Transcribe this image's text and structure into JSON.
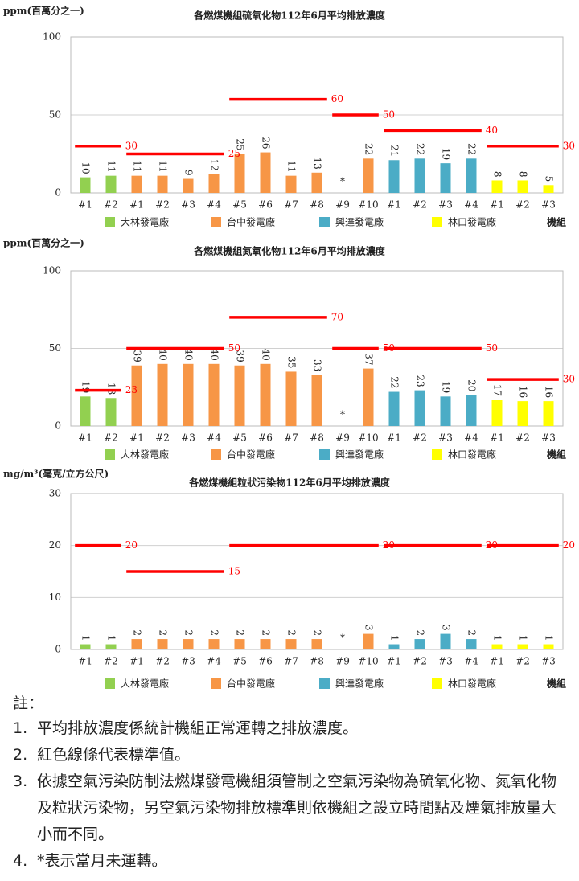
{
  "chart_data": [
    {
      "type": "bar",
      "title": "各燃煤機組硫氧化物112年6月平均排放濃度",
      "y_label": "ppm(百萬分之一)",
      "x_label": "機組",
      "categories": [
        "#1",
        "#2",
        "#1",
        "#2",
        "#3",
        "#4",
        "#5",
        "#6",
        "#7",
        "#8",
        "#9",
        "#10",
        "#1",
        "#2",
        "#3",
        "#4",
        "#1",
        "#2",
        "#3"
      ],
      "ylim": [
        0,
        100
      ],
      "yticks": [
        0,
        50,
        100
      ],
      "grid": true,
      "limit_color": "#ff0000",
      "series": [
        {
          "name": "大林發電廠",
          "color": "#92d050",
          "values": [
            10,
            11,
            null,
            null,
            null,
            null,
            null,
            null,
            null,
            null,
            null,
            null,
            null,
            null,
            null,
            null,
            null,
            null,
            null
          ]
        },
        {
          "name": "台中發電廠",
          "color": "#f79646",
          "values": [
            null,
            null,
            11,
            11,
            9,
            12,
            25,
            26,
            11,
            13,
            null,
            22,
            null,
            null,
            null,
            null,
            null,
            null,
            null
          ],
          "value_labels": [
            null,
            null,
            null,
            null,
            null,
            null,
            null,
            null,
            null,
            null,
            "*",
            null,
            null,
            null,
            null,
            null,
            null,
            null,
            null
          ]
        },
        {
          "name": "興達發電廠",
          "color": "#4bacc6",
          "values": [
            null,
            null,
            null,
            null,
            null,
            null,
            null,
            null,
            null,
            null,
            null,
            null,
            21,
            22,
            19,
            22,
            null,
            null,
            null
          ]
        },
        {
          "name": "林口發電廠",
          "color": "#ffff00",
          "values": [
            null,
            null,
            null,
            null,
            null,
            null,
            null,
            null,
            null,
            null,
            null,
            null,
            null,
            null,
            null,
            null,
            8,
            8,
            5
          ]
        }
      ],
      "limits": [
        {
          "values": [
            30,
            30,
            null,
            null,
            null,
            null,
            null,
            null,
            null,
            null,
            null,
            null,
            null,
            null,
            null,
            null,
            null,
            null,
            null
          ]
        },
        {
          "values": [
            null,
            null,
            25,
            25,
            25,
            25,
            null,
            null,
            null,
            null,
            null,
            null,
            null,
            null,
            null,
            null,
            null,
            null,
            null
          ]
        },
        {
          "values": [
            null,
            null,
            null,
            null,
            null,
            null,
            60,
            60,
            60,
            60,
            null,
            null,
            null,
            null,
            null,
            null,
            null,
            null,
            null
          ]
        },
        {
          "values": [
            null,
            null,
            null,
            null,
            null,
            null,
            null,
            null,
            null,
            null,
            50,
            50,
            null,
            null,
            null,
            null,
            null,
            null,
            null
          ]
        },
        {
          "values": [
            null,
            null,
            null,
            null,
            null,
            null,
            null,
            null,
            null,
            null,
            null,
            null,
            40,
            40,
            40,
            40,
            null,
            null,
            null
          ]
        },
        {
          "values": [
            null,
            null,
            null,
            null,
            null,
            null,
            null,
            null,
            null,
            null,
            null,
            null,
            null,
            null,
            null,
            null,
            30,
            30,
            30
          ]
        }
      ]
    },
    {
      "type": "bar",
      "title": "各燃煤機組氮氧化物112年6月平均排放濃度",
      "y_label": "ppm(百萬分之一)",
      "x_label": "機組",
      "categories": [
        "#1",
        "#2",
        "#1",
        "#2",
        "#3",
        "#4",
        "#5",
        "#6",
        "#7",
        "#8",
        "#9",
        "#10",
        "#1",
        "#2",
        "#3",
        "#4",
        "#1",
        "#2",
        "#3"
      ],
      "ylim": [
        0,
        100
      ],
      "yticks": [
        0,
        50,
        100
      ],
      "grid": true,
      "limit_color": "#ff0000",
      "series": [
        {
          "name": "大林發電廠",
          "color": "#92d050",
          "values": [
            19,
            18,
            null,
            null,
            null,
            null,
            null,
            null,
            null,
            null,
            null,
            null,
            null,
            null,
            null,
            null,
            null,
            null,
            null
          ]
        },
        {
          "name": "台中發電廠",
          "color": "#f79646",
          "values": [
            null,
            null,
            39,
            40,
            40,
            40,
            39,
            40,
            35,
            33,
            null,
            37,
            null,
            null,
            null,
            null,
            null,
            null,
            null
          ],
          "value_labels": [
            null,
            null,
            null,
            null,
            null,
            null,
            null,
            null,
            null,
            null,
            "*",
            null,
            null,
            null,
            null,
            null,
            null,
            null,
            null
          ]
        },
        {
          "name": "興達發電廠",
          "color": "#4bacc6",
          "values": [
            null,
            null,
            null,
            null,
            null,
            null,
            null,
            null,
            null,
            null,
            null,
            null,
            22,
            23,
            19,
            20,
            null,
            null,
            null
          ]
        },
        {
          "name": "林口發電廠",
          "color": "#ffff00",
          "values": [
            null,
            null,
            null,
            null,
            null,
            null,
            null,
            null,
            null,
            null,
            null,
            null,
            null,
            null,
            null,
            null,
            17,
            16,
            16
          ]
        }
      ],
      "limits": [
        {
          "values": [
            23,
            23,
            null,
            null,
            null,
            null,
            null,
            null,
            null,
            null,
            null,
            null,
            null,
            null,
            null,
            null,
            null,
            null,
            null
          ]
        },
        {
          "values": [
            null,
            null,
            50,
            50,
            50,
            50,
            null,
            null,
            null,
            null,
            null,
            null,
            null,
            null,
            null,
            null,
            null,
            null,
            null
          ]
        },
        {
          "values": [
            null,
            null,
            null,
            null,
            null,
            null,
            70,
            70,
            70,
            70,
            null,
            null,
            null,
            null,
            null,
            null,
            null,
            null,
            null
          ]
        },
        {
          "values": [
            null,
            null,
            null,
            null,
            null,
            null,
            null,
            null,
            null,
            null,
            50,
            50,
            null,
            null,
            null,
            null,
            null,
            null,
            null
          ]
        },
        {
          "values": [
            null,
            null,
            null,
            null,
            null,
            null,
            null,
            null,
            null,
            null,
            null,
            null,
            50,
            50,
            50,
            50,
            null,
            null,
            null
          ]
        },
        {
          "values": [
            null,
            null,
            null,
            null,
            null,
            null,
            null,
            null,
            null,
            null,
            null,
            null,
            null,
            null,
            null,
            null,
            30,
            30,
            30
          ]
        }
      ]
    },
    {
      "type": "bar",
      "title": "各燃煤機組粒狀污染物112年6月平均排放濃度",
      "y_label": "mg/m³(毫克/立方公尺)",
      "x_label": "機組",
      "categories": [
        "#1",
        "#2",
        "#1",
        "#2",
        "#3",
        "#4",
        "#5",
        "#6",
        "#7",
        "#8",
        "#9",
        "#10",
        "#1",
        "#2",
        "#3",
        "#4",
        "#1",
        "#2",
        "#3"
      ],
      "ylim": [
        0,
        30
      ],
      "yticks": [
        0,
        10,
        20,
        30
      ],
      "grid": true,
      "limit_color": "#ff0000",
      "series": [
        {
          "name": "大林發電廠",
          "color": "#92d050",
          "values": [
            1,
            1,
            null,
            null,
            null,
            null,
            null,
            null,
            null,
            null,
            null,
            null,
            null,
            null,
            null,
            null,
            null,
            null,
            null
          ]
        },
        {
          "name": "台中發電廠",
          "color": "#f79646",
          "values": [
            null,
            null,
            2,
            2,
            2,
            2,
            2,
            2,
            2,
            2,
            null,
            3,
            null,
            null,
            null,
            null,
            null,
            null,
            null
          ],
          "value_labels": [
            null,
            null,
            null,
            null,
            null,
            null,
            null,
            null,
            null,
            null,
            "*",
            null,
            null,
            null,
            null,
            null,
            null,
            null,
            null
          ]
        },
        {
          "name": "興達發電廠",
          "color": "#4bacc6",
          "values": [
            null,
            null,
            null,
            null,
            null,
            null,
            null,
            null,
            null,
            null,
            null,
            null,
            1,
            2,
            3,
            2,
            null,
            null,
            null
          ]
        },
        {
          "name": "林口發電廠",
          "color": "#ffff00",
          "values": [
            null,
            null,
            null,
            null,
            null,
            null,
            null,
            null,
            null,
            null,
            null,
            null,
            null,
            null,
            null,
            null,
            1,
            1,
            1
          ]
        }
      ],
      "limits": [
        {
          "values": [
            20,
            20,
            null,
            null,
            null,
            null,
            null,
            null,
            null,
            null,
            null,
            null,
            null,
            null,
            null,
            null,
            null,
            null,
            null
          ]
        },
        {
          "values": [
            null,
            null,
            15,
            15,
            15,
            15,
            null,
            null,
            null,
            null,
            null,
            null,
            null,
            null,
            null,
            null,
            null,
            null,
            null
          ]
        },
        {
          "values": [
            null,
            null,
            null,
            null,
            null,
            null,
            20,
            20,
            20,
            20,
            20,
            20,
            null,
            null,
            null,
            null,
            null,
            null,
            null
          ]
        },
        {
          "values": [
            null,
            null,
            null,
            null,
            null,
            null,
            null,
            null,
            null,
            null,
            null,
            null,
            20,
            20,
            20,
            20,
            null,
            null,
            null
          ]
        },
        {
          "values": [
            null,
            null,
            null,
            null,
            null,
            null,
            null,
            null,
            null,
            null,
            null,
            null,
            null,
            null,
            null,
            null,
            20,
            20,
            20
          ]
        }
      ]
    }
  ],
  "notes": {
    "heading": "註：",
    "items": [
      {
        "number": "1.",
        "text": "平均排放濃度係統計機組正常運轉之排放濃度。"
      },
      {
        "number": "2.",
        "text": "紅色線條代表標準值。"
      },
      {
        "number": "3.",
        "text": "依據空氣污染防制法燃煤發電機組須管制之空氣污染物為硫氧化物、氮氧化物及粒狀污染物，另空氣污染物排放標準則依機組之設立時間點及煙氣排放量大小而不同。"
      },
      {
        "number": "4.",
        "text": "*表示當月未運轉。"
      }
    ]
  }
}
